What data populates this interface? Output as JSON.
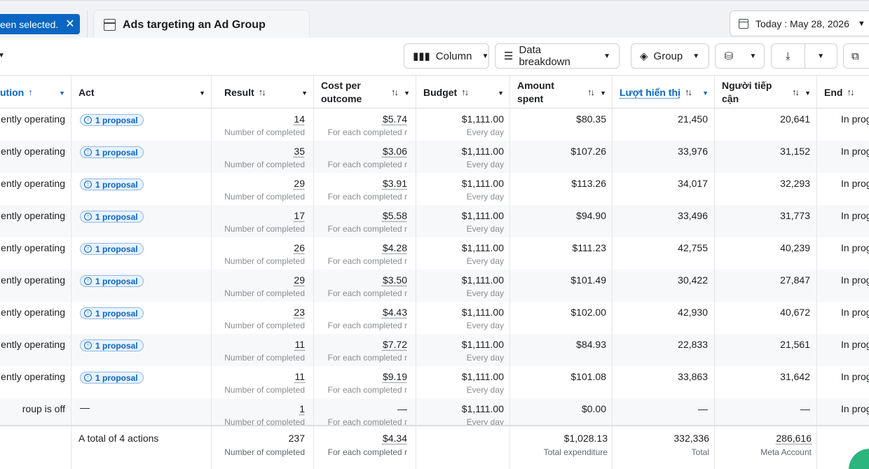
{
  "selection_chip": {
    "label": "een selected."
  },
  "tab": {
    "label": "Ads targeting an Ad Group"
  },
  "date": {
    "label": "Today : May 28, 2026"
  },
  "toolbar": {
    "column_label": "Column",
    "breakdown_label": "Data breakdown",
    "group_label": "Group"
  },
  "columns": {
    "status": "ution",
    "act": "Act",
    "result": "Result",
    "cost_line1": "Cost per",
    "cost_line2": "outcome",
    "budget": "Budget",
    "amount_line1": "Amount",
    "amount_line2": "spent",
    "impressions": "Lượt hiển thị",
    "reach_line1": "Người tiếp",
    "reach_line2": "cận",
    "end": "End"
  },
  "sort_glyph": "↑↓",
  "rows": [
    {
      "status": "ently operating",
      "act": "1 proposal",
      "result": "14",
      "result_sub": "Number of completed",
      "cost": "$5.74",
      "cost_sub": "For each completed r",
      "budget": "$1,111.00",
      "budget_sub": "Every day",
      "spent": "$80.35",
      "impressions": "21,450",
      "reach": "20,641",
      "end": "In prog"
    },
    {
      "status": "ently operating",
      "act": "1 proposal",
      "result": "35",
      "result_sub": "Number of completed",
      "cost": "$3.06",
      "cost_sub": "For each completed r",
      "budget": "$1,111.00",
      "budget_sub": "Every day",
      "spent": "$107.26",
      "impressions": "33,976",
      "reach": "31,152",
      "end": "In prog"
    },
    {
      "status": "ently operating",
      "act": "1 proposal",
      "result": "29",
      "result_sub": "Number of completed",
      "cost": "$3.91",
      "cost_sub": "For each completed r",
      "budget": "$1,111.00",
      "budget_sub": "Every day",
      "spent": "$113.26",
      "impressions": "34,017",
      "reach": "32,293",
      "end": "In prog"
    },
    {
      "status": "ently operating",
      "act": "1 proposal",
      "result": "17",
      "result_sub": "Number of completed",
      "cost": "$5.58",
      "cost_sub": "For each completed r",
      "budget": "$1,111.00",
      "budget_sub": "Every day",
      "spent": "$94.90",
      "impressions": "33,496",
      "reach": "31,773",
      "end": "In prog"
    },
    {
      "status": "ently operating",
      "act": "1 proposal",
      "result": "26",
      "result_sub": "Number of completed",
      "cost": "$4.28",
      "cost_sub": "For each completed r",
      "budget": "$1,111.00",
      "budget_sub": "Every day",
      "spent": "$111.23",
      "impressions": "42,755",
      "reach": "40,239",
      "end": "In prog"
    },
    {
      "status": "ently operating",
      "act": "1 proposal",
      "result": "29",
      "result_sub": "Number of completed",
      "cost": "$3.50",
      "cost_sub": "For each completed r",
      "budget": "$1,111.00",
      "budget_sub": "Every day",
      "spent": "$101.49",
      "impressions": "30,422",
      "reach": "27,847",
      "end": "In prog"
    },
    {
      "status": "ently operating",
      "act": "1 proposal",
      "result": "23",
      "result_sub": "Number of completed",
      "cost": "$4.43",
      "cost_sub": "For each completed r",
      "budget": "$1,111.00",
      "budget_sub": "Every day",
      "spent": "$102.00",
      "impressions": "42,930",
      "reach": "40,672",
      "end": "In prog"
    },
    {
      "status": "ently operating",
      "act": "1 proposal",
      "result": "11",
      "result_sub": "Number of completed",
      "cost": "$7.72",
      "cost_sub": "For each completed r",
      "budget": "$1,111.00",
      "budget_sub": "Every day",
      "spent": "$84.93",
      "impressions": "22,833",
      "reach": "21,561",
      "end": "In prog"
    },
    {
      "status": "ently operating",
      "act": "1 proposal",
      "result": "11",
      "result_sub": "Number of completed",
      "cost": "$9.19",
      "cost_sub": "For each completed r",
      "budget": "$1,111.00",
      "budget_sub": "Every day",
      "spent": "$101.08",
      "impressions": "33,863",
      "reach": "31,642",
      "end": "In prog"
    },
    {
      "status": "roup is off",
      "act": "—",
      "result": "1",
      "result_sub": "Number of completed",
      "cost": "—",
      "cost_sub": "For each completed r",
      "budget": "$1,111.00",
      "budget_sub": "Every day",
      "spent": "$0.00",
      "impressions": "—",
      "reach": "—",
      "end": "In prog"
    }
  ],
  "totals": {
    "label": "A total of 4 actions",
    "result": "237",
    "result_sub": "Number of completed",
    "cost": "$4.34",
    "cost_sub": "For each completed r",
    "spent": "$1,028.13",
    "spent_sub": "Total expenditure",
    "impressions": "332,336",
    "impressions_sub": "Total",
    "reach": "286,616",
    "reach_sub": "Meta Account"
  },
  "colors": {
    "accent": "#0a66c2",
    "fab": "#2cb67d"
  }
}
